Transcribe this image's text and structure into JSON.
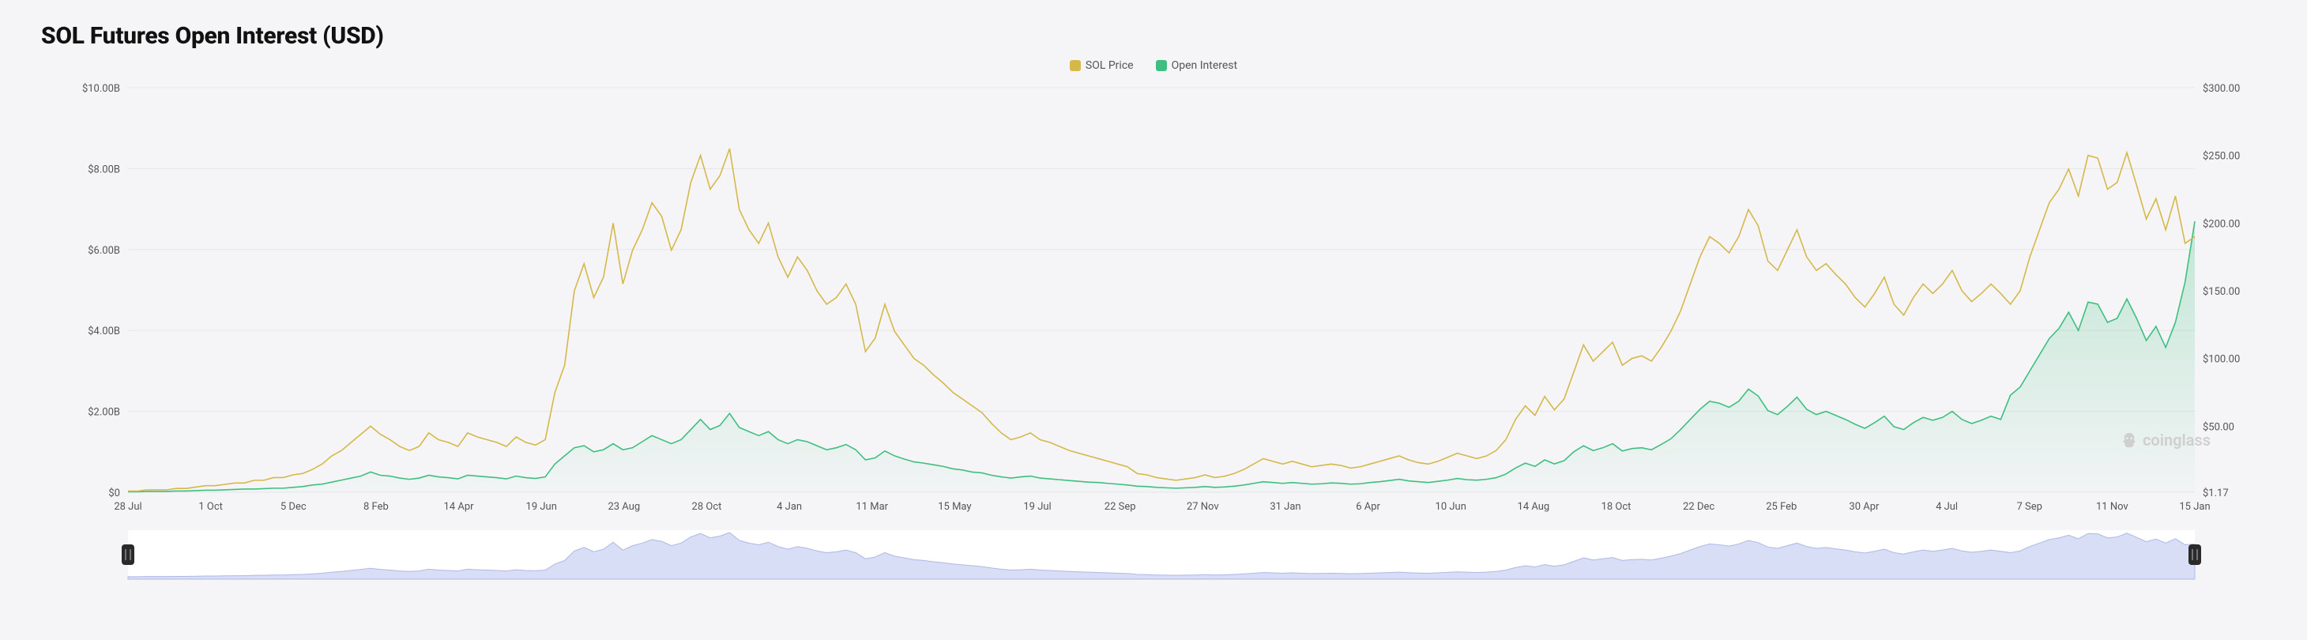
{
  "title": "SOL Futures Open Interest (USD)",
  "watermark_text": "coinglass",
  "chart": {
    "type": "line+area",
    "background_color": "#f5f5f7",
    "plot_background_color": "#f5f5f7",
    "grid_color": "#e6e6ea",
    "text_color": "#555555",
    "title_fontsize": 30,
    "axis_fontsize": 13,
    "legend_fontsize": 14,
    "left_axis": {
      "label_prefix": "$",
      "label_suffix": "B",
      "min": 0,
      "max": 10,
      "ticks": [
        0,
        2,
        4,
        6,
        8,
        10
      ],
      "tick_labels": [
        "$0",
        "$2.00B",
        "$4.00B",
        "$6.00B",
        "$8.00B",
        "$10.00B"
      ]
    },
    "right_axis": {
      "label_prefix": "$",
      "min": 1.17,
      "max": 300,
      "ticks": [
        1.17,
        50,
        100,
        150,
        200,
        250,
        300
      ],
      "tick_labels": [
        "$1.17",
        "$50.00",
        "$100.00",
        "$150.00",
        "$200.00",
        "$250.00",
        "$300.00"
      ]
    },
    "x_axis": {
      "tick_labels": [
        "28 Jul",
        "1 Oct",
        "5 Dec",
        "8 Feb",
        "14 Apr",
        "19 Jun",
        "23 Aug",
        "28 Oct",
        "4 Jan",
        "11 Mar",
        "15 May",
        "19 Jul",
        "22 Sep",
        "27 Nov",
        "31 Jan",
        "6 Apr",
        "10 Jun",
        "14 Aug",
        "18 Oct",
        "22 Dec",
        "25 Feb",
        "30 Apr",
        "4 Jul",
        "7 Sep",
        "11 Nov",
        "15 Jan"
      ]
    },
    "series": [
      {
        "name": "SOL Price",
        "legend_label": "SOL Price",
        "type": "line",
        "axis": "right",
        "color": "#d6b84a",
        "line_width": 1.6,
        "values": [
          2,
          2,
          3,
          3,
          3,
          4,
          4,
          5,
          6,
          6,
          7,
          8,
          8,
          10,
          10,
          12,
          12,
          14,
          15,
          18,
          22,
          28,
          32,
          38,
          44,
          50,
          44,
          40,
          35,
          32,
          35,
          45,
          40,
          38,
          35,
          45,
          42,
          40,
          38,
          35,
          42,
          38,
          36,
          40,
          75,
          95,
          150,
          170,
          145,
          160,
          200,
          155,
          180,
          195,
          215,
          205,
          180,
          195,
          230,
          250,
          225,
          235,
          255,
          210,
          195,
          185,
          200,
          175,
          160,
          175,
          165,
          150,
          140,
          145,
          155,
          140,
          105,
          115,
          140,
          120,
          110,
          100,
          95,
          88,
          82,
          75,
          70,
          65,
          60,
          52,
          45,
          40,
          42,
          45,
          40,
          38,
          35,
          32,
          30,
          28,
          26,
          24,
          22,
          20,
          15,
          14,
          12,
          11,
          10,
          11,
          12,
          14,
          12,
          13,
          15,
          18,
          22,
          26,
          24,
          22,
          24,
          22,
          20,
          21,
          22,
          21,
          19,
          20,
          22,
          24,
          26,
          28,
          25,
          23,
          22,
          24,
          27,
          30,
          28,
          26,
          28,
          32,
          40,
          55,
          65,
          58,
          72,
          62,
          70,
          90,
          110,
          98,
          105,
          112,
          95,
          100,
          102,
          98,
          108,
          120,
          135,
          155,
          175,
          190,
          185,
          178,
          190,
          210,
          198,
          172,
          165,
          180,
          195,
          175,
          165,
          170,
          162,
          155,
          145,
          138,
          148,
          160,
          140,
          132,
          145,
          155,
          148,
          155,
          165,
          150,
          142,
          148,
          155,
          148,
          140,
          150,
          175,
          195,
          215,
          225,
          240,
          220,
          250,
          248,
          225,
          230,
          252,
          228,
          203,
          218,
          195,
          220,
          185,
          190
        ]
      },
      {
        "name": "Open Interest",
        "legend_label": "Open Interest",
        "type": "area",
        "axis": "left",
        "color": "#3fbf7f",
        "fill_color": "#3fbf7f",
        "fill_opacity_top": 0.28,
        "fill_opacity_bottom": 0.02,
        "line_width": 1.6,
        "values": [
          0.01,
          0.01,
          0.02,
          0.02,
          0.02,
          0.03,
          0.03,
          0.04,
          0.05,
          0.05,
          0.06,
          0.07,
          0.08,
          0.08,
          0.09,
          0.1,
          0.1,
          0.12,
          0.14,
          0.18,
          0.2,
          0.25,
          0.3,
          0.35,
          0.4,
          0.5,
          0.42,
          0.4,
          0.35,
          0.32,
          0.35,
          0.42,
          0.38,
          0.36,
          0.33,
          0.42,
          0.4,
          0.38,
          0.36,
          0.33,
          0.4,
          0.36,
          0.34,
          0.38,
          0.7,
          0.9,
          1.1,
          1.15,
          1.0,
          1.05,
          1.2,
          1.05,
          1.1,
          1.25,
          1.4,
          1.3,
          1.2,
          1.3,
          1.55,
          1.8,
          1.55,
          1.65,
          1.95,
          1.6,
          1.5,
          1.4,
          1.5,
          1.3,
          1.2,
          1.3,
          1.25,
          1.15,
          1.05,
          1.1,
          1.18,
          1.05,
          0.8,
          0.85,
          1.02,
          0.9,
          0.82,
          0.75,
          0.72,
          0.68,
          0.64,
          0.58,
          0.55,
          0.5,
          0.48,
          0.42,
          0.38,
          0.35,
          0.38,
          0.4,
          0.35,
          0.33,
          0.31,
          0.29,
          0.27,
          0.25,
          0.24,
          0.22,
          0.2,
          0.18,
          0.15,
          0.14,
          0.12,
          0.11,
          0.1,
          0.11,
          0.12,
          0.14,
          0.12,
          0.13,
          0.15,
          0.18,
          0.22,
          0.26,
          0.24,
          0.22,
          0.24,
          0.22,
          0.2,
          0.21,
          0.23,
          0.22,
          0.2,
          0.21,
          0.24,
          0.26,
          0.29,
          0.32,
          0.28,
          0.26,
          0.24,
          0.27,
          0.3,
          0.34,
          0.31,
          0.3,
          0.32,
          0.36,
          0.45,
          0.6,
          0.72,
          0.64,
          0.8,
          0.7,
          0.78,
          1.0,
          1.15,
          1.03,
          1.1,
          1.2,
          1.02,
          1.08,
          1.1,
          1.05,
          1.18,
          1.32,
          1.55,
          1.8,
          2.05,
          2.25,
          2.2,
          2.1,
          2.25,
          2.55,
          2.38,
          2.02,
          1.92,
          2.12,
          2.35,
          2.05,
          1.92,
          2.0,
          1.9,
          1.8,
          1.68,
          1.58,
          1.72,
          1.88,
          1.62,
          1.55,
          1.72,
          1.85,
          1.78,
          1.85,
          2.0,
          1.8,
          1.7,
          1.78,
          1.88,
          1.8,
          2.4,
          2.6,
          3.0,
          3.4,
          3.8,
          4.05,
          4.45,
          4.0,
          4.7,
          4.65,
          4.2,
          4.3,
          4.78,
          4.3,
          3.75,
          4.1,
          3.58,
          4.2,
          5.2,
          6.7
        ]
      }
    ]
  },
  "brush": {
    "fill_color": "#c6d0f2",
    "stroke_color": "#aeb9e4",
    "background_color": "#ffffff",
    "handle_color": "#2a2a2a",
    "ref_series": "SOL Price"
  }
}
